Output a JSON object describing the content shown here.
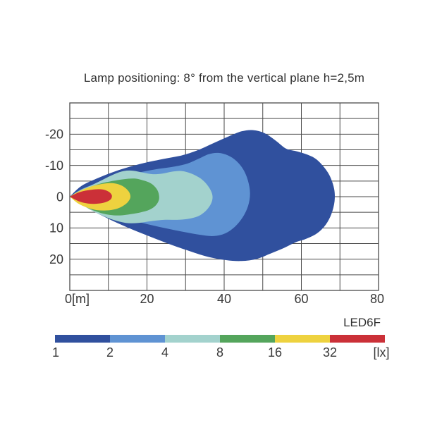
{
  "title": "Lamp positioning: 8° from the vertical plane h=2,5m",
  "axes": {
    "x": {
      "tick_labels": [
        "0[m]",
        "20",
        "40",
        "60",
        "80"
      ],
      "tick_values": [
        0,
        20,
        40,
        60,
        80
      ],
      "range": [
        0,
        80
      ],
      "grid_step_m": 10
    },
    "y": {
      "tick_labels": [
        "-20",
        "-10",
        "0",
        "10",
        "20"
      ],
      "tick_values": [
        -20,
        -10,
        0,
        10,
        20
      ],
      "range": [
        -30,
        30
      ],
      "grid_step_m": 5
    }
  },
  "legend": {
    "name": "LED6F",
    "unit": "[lx]",
    "entries": [
      {
        "value": "1",
        "color": "#30509e"
      },
      {
        "value": "2",
        "color": "#5f93d3"
      },
      {
        "value": "4",
        "color": "#a3d2cd"
      },
      {
        "value": "8",
        "color": "#54a55c"
      },
      {
        "value": "16",
        "color": "#eed23f"
      },
      {
        "value": "32",
        "color": "#cb3038"
      }
    ]
  },
  "colors": {
    "grid": "#4a4a4a",
    "text": "#383838",
    "background": "#ffffff"
  },
  "chart_data": {
    "type": "contour",
    "subtype": "isolux-beam-pattern",
    "title": "Lamp positioning: 8° from the vertical plane h=2,5m",
    "x_unit": "m",
    "value_unit": "lx",
    "x_range": [
      0,
      80
    ],
    "y_range": [
      -30,
      30
    ],
    "grid": true,
    "x_grid_step": 10,
    "y_grid_step": 5,
    "series_name": "LED6F",
    "contours": [
      {
        "level_lx": 1,
        "color": "#30509e",
        "points": [
          [
            0,
            0
          ],
          [
            3,
            -3.4
          ],
          [
            7,
            -5.8
          ],
          [
            12,
            -8.2
          ],
          [
            18,
            -10.4
          ],
          [
            24,
            -12.0
          ],
          [
            29,
            -13.2
          ],
          [
            33,
            -14.8
          ],
          [
            37,
            -17.0
          ],
          [
            41,
            -19.2
          ],
          [
            44.5,
            -20.9
          ],
          [
            47.5,
            -21.3
          ],
          [
            50.5,
            -20.3
          ],
          [
            53.5,
            -17.8
          ],
          [
            56,
            -15.4
          ],
          [
            58.5,
            -14.6
          ],
          [
            61,
            -13.7
          ],
          [
            63.5,
            -12.3
          ],
          [
            65.5,
            -10.0
          ],
          [
            67.3,
            -6.8
          ],
          [
            68.5,
            -2.5
          ],
          [
            68.6,
            1.5
          ],
          [
            67.8,
            5.5
          ],
          [
            66.3,
            9.0
          ],
          [
            64,
            11.8
          ],
          [
            61,
            13.6
          ],
          [
            58.5,
            14.6
          ],
          [
            55.5,
            16.4
          ],
          [
            52,
            18.2
          ],
          [
            48.5,
            19.9
          ],
          [
            44.5,
            20.6
          ],
          [
            40.5,
            20.3
          ],
          [
            36,
            19.3
          ],
          [
            31,
            17.4
          ],
          [
            25,
            14.8
          ],
          [
            19,
            11.9
          ],
          [
            13,
            8.8
          ],
          [
            7,
            5.2
          ],
          [
            3,
            2.4
          ],
          [
            0,
            0
          ]
        ]
      },
      {
        "level_lx": 2,
        "color": "#5f93d3",
        "points": [
          [
            0,
            0
          ],
          [
            3,
            -2.4
          ],
          [
            7,
            -4.2
          ],
          [
            11,
            -5.6
          ],
          [
            15,
            -6.9
          ],
          [
            19,
            -8.0
          ],
          [
            23,
            -8.9
          ],
          [
            27,
            -9.6
          ],
          [
            30.5,
            -10.6
          ],
          [
            33.5,
            -12.2
          ],
          [
            36,
            -13.6
          ],
          [
            38.5,
            -14.0
          ],
          [
            41,
            -13.2
          ],
          [
            43.2,
            -11.4
          ],
          [
            45,
            -8.6
          ],
          [
            46.2,
            -5.0
          ],
          [
            46.7,
            -1.0
          ],
          [
            46.2,
            3.0
          ],
          [
            44.8,
            6.6
          ],
          [
            42.8,
            9.6
          ],
          [
            40.2,
            11.8
          ],
          [
            37.2,
            12.6
          ],
          [
            33.8,
            12.2
          ],
          [
            30,
            11.4
          ],
          [
            26,
            10.4
          ],
          [
            21.5,
            9.2
          ],
          [
            16.5,
            7.6
          ],
          [
            11.5,
            5.7
          ],
          [
            6.5,
            3.5
          ],
          [
            3,
            1.8
          ],
          [
            0,
            0
          ]
        ]
      },
      {
        "level_lx": 4,
        "color": "#a3d2cd",
        "points": [
          [
            0,
            0
          ],
          [
            2.5,
            -1.9
          ],
          [
            5.5,
            -3.6
          ],
          [
            8.5,
            -5.4
          ],
          [
            11.5,
            -7.2
          ],
          [
            14,
            -8.2
          ],
          [
            16.5,
            -8.3
          ],
          [
            19,
            -7.7
          ],
          [
            21.5,
            -7.2
          ],
          [
            24,
            -7.4
          ],
          [
            26.5,
            -8.0
          ],
          [
            29,
            -8.2
          ],
          [
            31.5,
            -7.4
          ],
          [
            33.8,
            -5.9
          ],
          [
            35.6,
            -3.8
          ],
          [
            36.8,
            -1.2
          ],
          [
            36.9,
            1.2
          ],
          [
            35.8,
            3.8
          ],
          [
            33.8,
            5.9
          ],
          [
            31.2,
            7.0
          ],
          [
            28.2,
            7.4
          ],
          [
            24.8,
            7.4
          ],
          [
            21.2,
            7.8
          ],
          [
            17.8,
            8.4
          ],
          [
            14.5,
            8.4
          ],
          [
            11.2,
            7.4
          ],
          [
            8,
            5.8
          ],
          [
            5,
            4.0
          ],
          [
            2.5,
            2.0
          ],
          [
            0,
            0
          ]
        ]
      },
      {
        "level_lx": 8,
        "color": "#54a55c",
        "points": [
          [
            0,
            0
          ],
          [
            2.5,
            -1.7
          ],
          [
            5,
            -3.0
          ],
          [
            8,
            -4.2
          ],
          [
            11,
            -5.0
          ],
          [
            14,
            -5.6
          ],
          [
            16.8,
            -5.8
          ],
          [
            19,
            -5.2
          ],
          [
            20.8,
            -4.4
          ],
          [
            22.2,
            -3.0
          ],
          [
            23.0,
            -1.2
          ],
          [
            23.1,
            1.0
          ],
          [
            22.2,
            2.9
          ],
          [
            20.6,
            4.2
          ],
          [
            18.4,
            5.0
          ],
          [
            15.8,
            5.6
          ],
          [
            13,
            6.0
          ],
          [
            10.2,
            5.8
          ],
          [
            7.5,
            5.0
          ],
          [
            4.8,
            3.7
          ],
          [
            2.3,
            2.0
          ],
          [
            0,
            0
          ]
        ]
      },
      {
        "level_lx": 16,
        "color": "#eed23f",
        "points": [
          [
            0,
            0
          ],
          [
            2,
            -1.5
          ],
          [
            4,
            -2.6
          ],
          [
            6.5,
            -3.6
          ],
          [
            9,
            -4.2
          ],
          [
            11.2,
            -4.3
          ],
          [
            13,
            -3.8
          ],
          [
            14.4,
            -2.8
          ],
          [
            15.4,
            -1.4
          ],
          [
            15.7,
            0.2
          ],
          [
            15.0,
            1.8
          ],
          [
            13.6,
            3.1
          ],
          [
            11.8,
            4.0
          ],
          [
            9.5,
            4.4
          ],
          [
            7,
            4.3
          ],
          [
            4.5,
            3.5
          ],
          [
            2.2,
            2.2
          ],
          [
            0,
            0
          ]
        ]
      },
      {
        "level_lx": 32,
        "color": "#cb3038",
        "points": [
          [
            0,
            0
          ],
          [
            1.8,
            -1.1
          ],
          [
            3.6,
            -1.8
          ],
          [
            5.6,
            -2.2
          ],
          [
            7.6,
            -2.4
          ],
          [
            9.2,
            -2.1
          ],
          [
            10.3,
            -1.4
          ],
          [
            10.9,
            -0.4
          ],
          [
            10.7,
            0.7
          ],
          [
            9.8,
            1.5
          ],
          [
            8.2,
            2.1
          ],
          [
            6.2,
            2.3
          ],
          [
            4.2,
            2.1
          ],
          [
            2.2,
            1.4
          ],
          [
            0,
            0
          ]
        ]
      }
    ]
  }
}
